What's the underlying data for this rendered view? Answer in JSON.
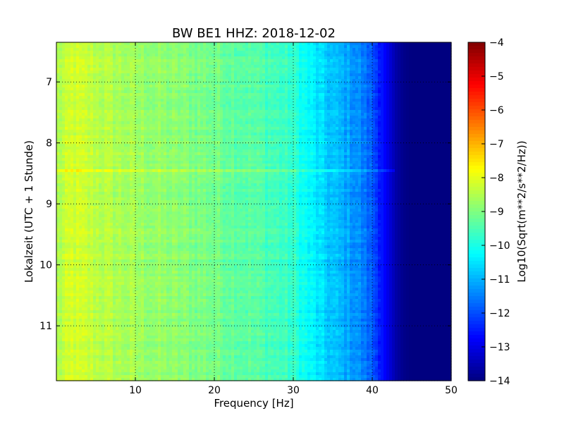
{
  "chart_data": {
    "type": "heatmap",
    "title": "BW BE1 HHZ: 2018-12-02",
    "xlabel": "Frequency [Hz]",
    "ylabel": "Lokalzeit (UTC + 1 Stunde)",
    "x_range": [
      0,
      50
    ],
    "y_range": [
      6.35,
      11.9
    ],
    "y_inverted": true,
    "x_ticks": [
      10,
      20,
      30,
      40,
      50
    ],
    "x_tick_labels": [
      "10",
      "20",
      "30",
      "40",
      "50"
    ],
    "y_ticks": [
      7,
      8,
      9,
      10,
      11
    ],
    "y_tick_labels": [
      "7",
      "8",
      "9",
      "10",
      "11"
    ],
    "grid": true,
    "colormap": "jet",
    "colorbar": {
      "label": "Log10(Sqrt(m**2/s**2/Hz))",
      "range": [
        -14,
        -4
      ],
      "ticks": [
        -4,
        -5,
        -6,
        -7,
        -8,
        -9,
        -10,
        -11,
        -12,
        -13,
        -14
      ],
      "tick_labels": [
        "−4",
        "−5",
        "−6",
        "−7",
        "−8",
        "−9",
        "−10",
        "−11",
        "−12",
        "−13",
        "−14"
      ]
    },
    "spectral_profile": {
      "frequency_hz": [
        0,
        2,
        5,
        10,
        15,
        20,
        25,
        28,
        30,
        32,
        34,
        36,
        38,
        40,
        41,
        42,
        43,
        44,
        45,
        50
      ],
      "log10_amplitude": [
        -8.6,
        -8.2,
        -8.4,
        -8.7,
        -8.9,
        -9.1,
        -9.4,
        -9.6,
        -9.8,
        -10.3,
        -10.7,
        -11.0,
        -11.3,
        -11.9,
        -12.4,
        -13.0,
        -13.6,
        -13.9,
        -14.0,
        -14.0
      ]
    }
  }
}
